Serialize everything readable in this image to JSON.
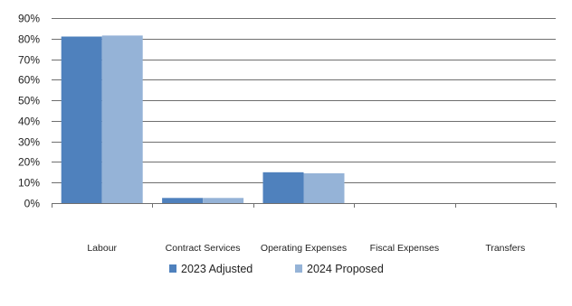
{
  "chart_data": {
    "type": "bar",
    "categories": [
      "Labour",
      "Contract Services",
      "Operating Expenses",
      "Fiscal Expenses",
      "Transfers"
    ],
    "series": [
      {
        "name": "2023 Adjusted",
        "values": [
          81,
          2.5,
          15,
          0,
          0
        ],
        "color": "#4f81bd"
      },
      {
        "name": "2024 Proposed",
        "values": [
          81.5,
          2.5,
          14.5,
          0,
          0
        ],
        "color": "#95b3d7"
      }
    ],
    "ylim": [
      0,
      90
    ],
    "yticks": [
      0,
      10,
      20,
      30,
      40,
      50,
      60,
      70,
      80,
      90
    ],
    "ytick_labels": [
      "0%",
      "10%",
      "20%",
      "30%",
      "40%",
      "50%",
      "60%",
      "70%",
      "80%",
      "90%"
    ],
    "grid": true,
    "legend_position": "bottom",
    "title": "",
    "xlabel": "",
    "ylabel": ""
  }
}
